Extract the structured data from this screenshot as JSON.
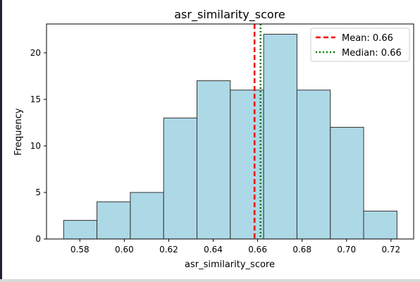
{
  "chart_data": {
    "type": "bar",
    "title": "asr_similarity_score",
    "xlabel": "asr_similarity_score",
    "ylabel": "Frequency",
    "bin_edges": [
      0.5727,
      0.5877,
      0.6027,
      0.6177,
      0.6327,
      0.6477,
      0.6627,
      0.6777,
      0.6927,
      0.7077,
      0.7227
    ],
    "values": [
      2,
      4,
      5,
      13,
      17,
      16,
      22,
      16,
      12,
      3
    ],
    "xlim": [
      0.565,
      0.7302
    ],
    "ylim": [
      0,
      23.1
    ],
    "xticks": [
      0.58,
      0.6,
      0.62,
      0.64,
      0.66,
      0.68,
      0.7,
      0.72
    ],
    "xtick_labels": [
      "0.58",
      "0.60",
      "0.62",
      "0.64",
      "0.66",
      "0.68",
      "0.70",
      "0.72"
    ],
    "yticks": [
      0,
      5,
      10,
      15,
      20
    ],
    "ytick_labels": [
      "0",
      "5",
      "10",
      "15",
      "20"
    ],
    "mean": 0.6586,
    "median": 0.6613,
    "legend": [
      "Mean: 0.66",
      "Median: 0.66"
    ],
    "legend_position": "top-right",
    "grid": false,
    "colors": {
      "bar_fill": "#add8e6",
      "bar_edge": "#333333",
      "mean_line": "#ee0000",
      "median_line": "#007a00"
    }
  }
}
